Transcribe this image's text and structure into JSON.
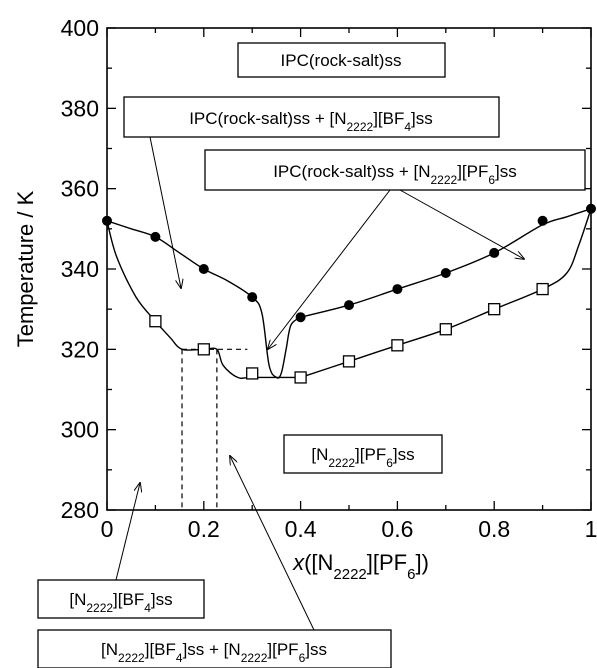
{
  "chart_data": {
    "type": "scatter",
    "xlabel_parts": [
      {
        "t": "x",
        "style": "italic"
      },
      {
        "t": "([N"
      },
      {
        "t": "2222",
        "style": "sub"
      },
      {
        "t": "][PF"
      },
      {
        "t": "6",
        "style": "sub"
      },
      {
        "t": "])"
      }
    ],
    "ylabel": "Temperature / K",
    "xlim": [
      0,
      1
    ],
    "ylim": [
      280,
      400
    ],
    "x_ticks": [
      0,
      0.2,
      0.4,
      0.6,
      0.8,
      1
    ],
    "x_tick_labels": [
      "0",
      "0.2",
      "0.4",
      "0.6",
      "0.8",
      "1"
    ],
    "y_ticks": [
      280,
      300,
      320,
      340,
      360,
      380,
      400
    ],
    "y_tick_labels": [
      "280",
      "300",
      "320",
      "340",
      "360",
      "380",
      "400"
    ],
    "grid": false,
    "series": [
      {
        "marker": "filled-circle",
        "color": "#000000",
        "points": [
          [
            0,
            352
          ],
          [
            0.1,
            348
          ],
          [
            0.2,
            340
          ],
          [
            0.3,
            333
          ],
          [
            0.4,
            328
          ],
          [
            0.5,
            331
          ],
          [
            0.6,
            335
          ],
          [
            0.7,
            339
          ],
          [
            0.8,
            344
          ],
          [
            0.9,
            352
          ],
          [
            1.0,
            355
          ]
        ]
      },
      {
        "marker": "open-square",
        "color": "#000000",
        "points": [
          [
            0.1,
            327
          ],
          [
            0.2,
            320
          ],
          [
            0.3,
            314
          ],
          [
            0.4,
            313
          ],
          [
            0.5,
            317
          ],
          [
            0.6,
            321
          ],
          [
            0.7,
            325
          ],
          [
            0.8,
            330
          ],
          [
            0.9,
            335
          ]
        ]
      }
    ],
    "curves": [
      {
        "name": "liquidus-left",
        "points": [
          [
            0,
            352
          ],
          [
            0.05,
            350
          ],
          [
            0.1,
            348
          ],
          [
            0.15,
            344
          ],
          [
            0.2,
            340
          ],
          [
            0.25,
            337
          ],
          [
            0.3,
            333
          ],
          [
            0.32,
            329
          ],
          [
            0.335,
            316
          ],
          [
            0.35,
            313
          ],
          [
            0.36,
            314
          ],
          [
            0.37,
            320
          ],
          [
            0.38,
            326
          ],
          [
            0.4,
            328
          ]
        ]
      },
      {
        "name": "liquidus-right",
        "points": [
          [
            0.4,
            328
          ],
          [
            0.5,
            331
          ],
          [
            0.6,
            335
          ],
          [
            0.7,
            339
          ],
          [
            0.8,
            344
          ],
          [
            0.9,
            351
          ],
          [
            0.95,
            353
          ],
          [
            1.0,
            355
          ]
        ]
      },
      {
        "name": "solidus-left",
        "points": [
          [
            0,
            352
          ],
          [
            0.02,
            343
          ],
          [
            0.06,
            333
          ],
          [
            0.1,
            327
          ],
          [
            0.13,
            323
          ],
          [
            0.155,
            320
          ],
          [
            0.2,
            320
          ],
          [
            0.227,
            320
          ],
          [
            0.24,
            316
          ],
          [
            0.27,
            313
          ],
          [
            0.3,
            313
          ],
          [
            0.4,
            313
          ]
        ]
      },
      {
        "name": "solidus-right",
        "points": [
          [
            0.4,
            313
          ],
          [
            0.5,
            317
          ],
          [
            0.6,
            321
          ],
          [
            0.7,
            325
          ],
          [
            0.8,
            330
          ],
          [
            0.9,
            335
          ],
          [
            0.95,
            339
          ],
          [
            0.975,
            346
          ],
          [
            1.0,
            355
          ]
        ]
      }
    ],
    "dashed_lines": [
      {
        "name": "eutectic-line",
        "points": [
          [
            0.155,
            320
          ],
          [
            0.29,
            320
          ]
        ]
      },
      {
        "name": "dashed-left",
        "points": [
          [
            0.155,
            320
          ],
          [
            0.155,
            280
          ]
        ]
      },
      {
        "name": "dashed-right",
        "points": [
          [
            0.227,
            320
          ],
          [
            0.227,
            280
          ]
        ]
      }
    ],
    "annotations": [
      {
        "name": "label-ipc-rocksalt",
        "parts": [
          {
            "t": "IPC(rock-salt)ss"
          }
        ]
      },
      {
        "name": "label-ipc-bf4",
        "parts": [
          {
            "t": "IPC(rock-salt)ss + [N"
          },
          {
            "t": "2222",
            "style": "sub"
          },
          {
            "t": "][BF"
          },
          {
            "t": "4",
            "style": "sub"
          },
          {
            "t": "]ss"
          }
        ]
      },
      {
        "name": "label-ipc-pf6",
        "parts": [
          {
            "t": "IPC(rock-salt)ss + [N"
          },
          {
            "t": "2222",
            "style": "sub"
          },
          {
            "t": "][PF"
          },
          {
            "t": "6",
            "style": "sub"
          },
          {
            "t": "]ss"
          }
        ]
      },
      {
        "name": "label-pf6",
        "parts": [
          {
            "t": "[N"
          },
          {
            "t": "2222",
            "style": "sub"
          },
          {
            "t": "][PF"
          },
          {
            "t": "6",
            "style": "sub"
          },
          {
            "t": "]ss"
          }
        ]
      },
      {
        "name": "label-bf4",
        "parts": [
          {
            "t": "[N"
          },
          {
            "t": "2222",
            "style": "sub"
          },
          {
            "t": "][BF"
          },
          {
            "t": "4",
            "style": "sub"
          },
          {
            "t": "]ss"
          }
        ]
      },
      {
        "name": "label-bf4-pf6",
        "parts": [
          {
            "t": "[N"
          },
          {
            "t": "2222",
            "style": "sub"
          },
          {
            "t": "][BF"
          },
          {
            "t": "4",
            "style": "sub"
          },
          {
            "t": "]ss + [N"
          },
          {
            "t": "2222",
            "style": "sub"
          },
          {
            "t": "][PF"
          },
          {
            "t": "6",
            "style": "sub"
          },
          {
            "t": "]ss"
          }
        ]
      }
    ]
  }
}
